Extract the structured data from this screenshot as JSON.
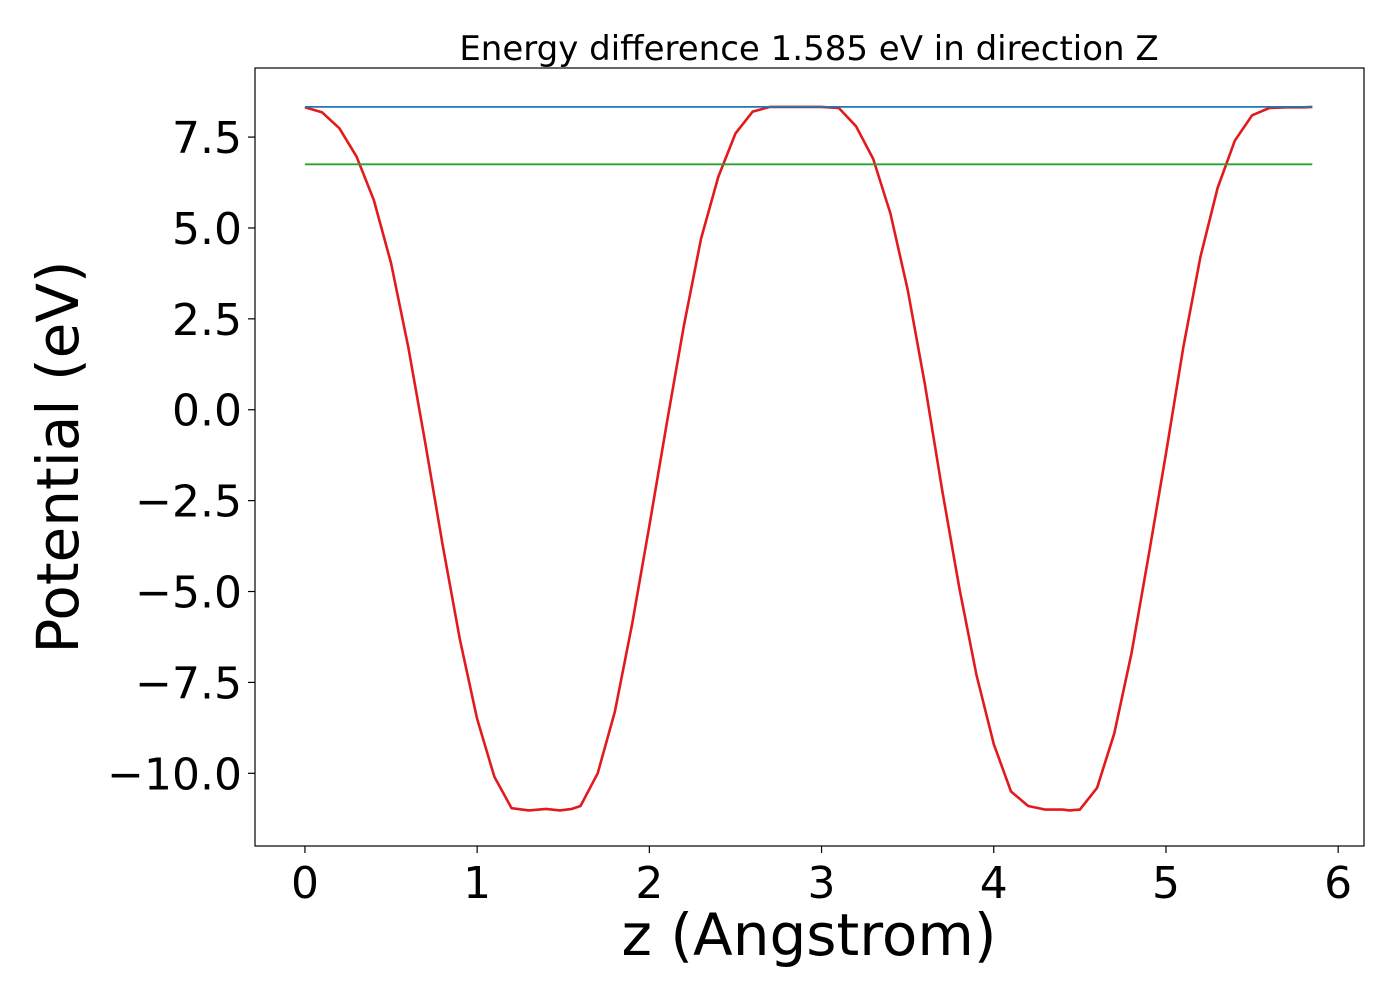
{
  "chart_data": {
    "type": "line",
    "title": "Energy difference 1.585 eV in direction Z",
    "xlabel": "z (Angstrom)",
    "ylabel": "Potential (eV)",
    "xlim": [
      -0.29,
      6.15
    ],
    "ylim": [
      -12.0,
      9.4
    ],
    "x_ticks": [
      0,
      1,
      2,
      3,
      4,
      5,
      6
    ],
    "x_tick_labels": [
      "0",
      "1",
      "2",
      "3",
      "4",
      "5",
      "6"
    ],
    "y_ticks": [
      -10.0,
      -7.5,
      -5.0,
      -2.5,
      0.0,
      2.5,
      5.0,
      7.5
    ],
    "y_tick_labels": [
      "−10.0",
      "−7.5",
      "−5.0",
      "−2.5",
      "0.0",
      "2.5",
      "5.0",
      "7.5"
    ],
    "grid": false,
    "legend": "none",
    "series": [
      {
        "color": "#e31a1c",
        "style": "line",
        "x": [
          0.0,
          0.1,
          0.2,
          0.3,
          0.4,
          0.5,
          0.6,
          0.7,
          0.8,
          0.9,
          1.0,
          1.1,
          1.2,
          1.3,
          1.4,
          1.48,
          1.55,
          1.6,
          1.7,
          1.8,
          1.9,
          2.0,
          2.1,
          2.2,
          2.3,
          2.4,
          2.5,
          2.6,
          2.7,
          2.8,
          2.9,
          2.96,
          3.0,
          3.1,
          3.2,
          3.3,
          3.4,
          3.5,
          3.6,
          3.7,
          3.8,
          3.9,
          4.0,
          4.1,
          4.2,
          4.3,
          4.4,
          4.44,
          4.5,
          4.6,
          4.7,
          4.8,
          4.9,
          5.0,
          5.1,
          5.2,
          5.3,
          5.4,
          5.5,
          5.6,
          5.7,
          5.8,
          5.85
        ],
        "y": [
          8.32,
          8.18,
          7.74,
          6.96,
          5.77,
          4.04,
          1.72,
          -0.95,
          -3.73,
          -6.32,
          -8.5,
          -10.1,
          -10.96,
          -11.02,
          -10.98,
          -11.02,
          -10.98,
          -10.9,
          -10.0,
          -8.3,
          -5.9,
          -3.2,
          -0.4,
          2.3,
          4.7,
          6.4,
          7.6,
          8.2,
          8.33,
          8.33,
          8.33,
          8.33,
          8.33,
          8.3,
          7.8,
          6.9,
          5.4,
          3.3,
          0.7,
          -2.2,
          -4.9,
          -7.3,
          -9.2,
          -10.5,
          -10.9,
          -11.0,
          -11.0,
          -11.02,
          -11.0,
          -10.4,
          -8.9,
          -6.7,
          -4.0,
          -1.2,
          1.7,
          4.2,
          6.1,
          7.4,
          8.1,
          8.3,
          8.32,
          8.32,
          8.33
        ]
      },
      {
        "color": "#1f77b4",
        "style": "hline",
        "x": [
          0.0,
          5.85
        ],
        "y": [
          8.33,
          8.33
        ]
      },
      {
        "color": "#2ca02c",
        "style": "hline",
        "x": [
          0.0,
          5.85
        ],
        "y": [
          6.75,
          6.75
        ]
      }
    ]
  }
}
